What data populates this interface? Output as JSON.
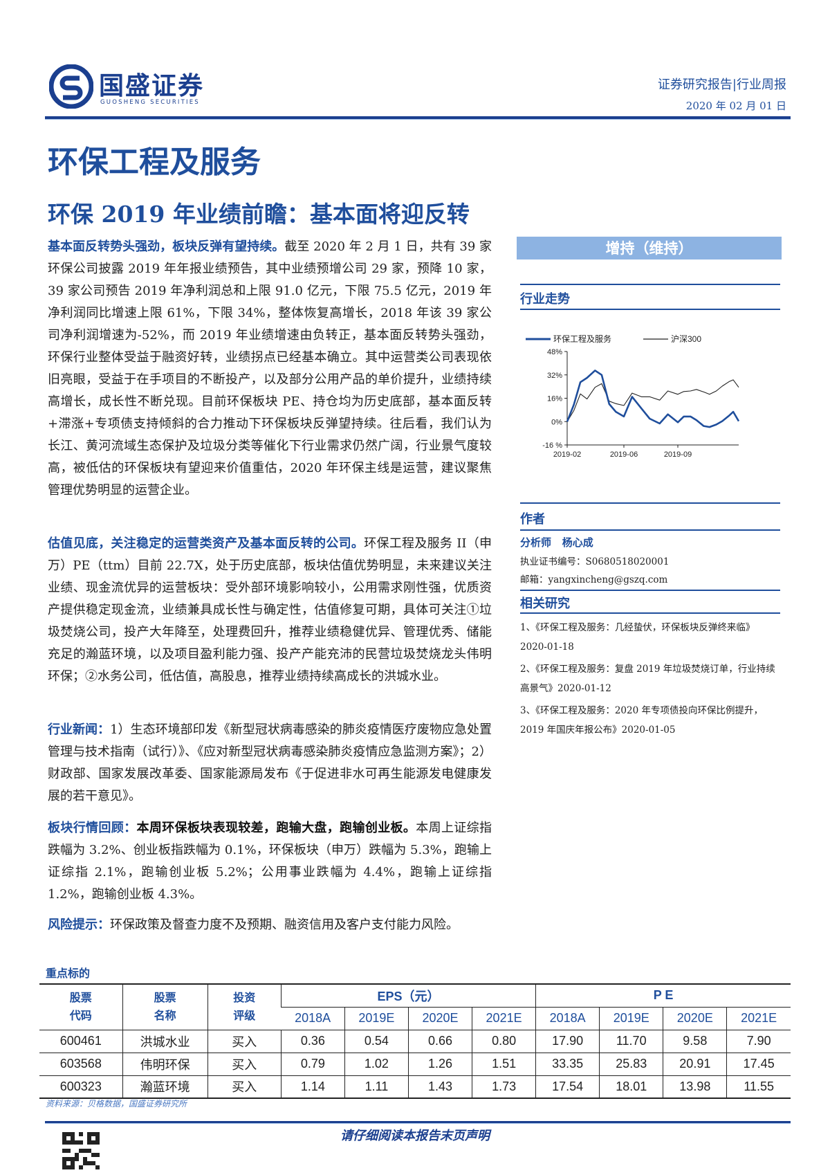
{
  "header": {
    "logo_cn": "国盛证券",
    "logo_en": "GUOSHENG SECURITIES",
    "report_type": "证券研究报告|行业周报",
    "date": "2020 年 02 月 01 日"
  },
  "industry_title": "环保工程及服务",
  "report_title": "环保 2019 年业绩前瞻：基本面将迎反转",
  "rating": "增持（维持）",
  "paragraphs": [
    {
      "lead": "基本面反转势头强劲，板块反弹有望持续。",
      "text": "截至 2020 年 2 月 1 日，共有 39 家环保公司披露 2019 年年报业绩预告，其中业绩预增公司 29 家，预降 10 家，39 家公司预告 2019 年净利润总和上限 91.0 亿元，下限 75.5 亿元，2019 年净利润同比增速上限 61%，下限 34%，整体恢复高增长，2018 年该 39 家公司净利润增速为-52%，而 2019 年业绩增速由负转正，基本面反转势头强劲，环保行业整体受益于融资好转，业绩拐点已经基本确立。其中运营类公司表现依旧亮眼，受益于在手项目的不断投产，以及部分公用产品的单价提升，业绩持续高增长，成长性不断兑现。目前环保板块 PE、持仓均为历史底部，基本面反转+滞涨+专项债支持倾斜的合力推动下环保板块反弹望持续。往后看，我们认为长江、黄河流域生态保护及垃圾分类等催化下行业需求仍然广阔，行业景气度较高，被低估的环保板块有望迎来价值重估，2020 年环保主线是运营，建议聚焦管理优势明显的运营企业。"
    },
    {
      "lead": "估值见底，关注稳定的运营类资产及基本面反转的公司。",
      "text": "环保工程及服务 II（申万）PE（ttm）目前 22.7X，处于历史底部，板块估值优势明显，未来建议关注业绩、现金流优异的运营板块：受外部环境影响较小，公用需求刚性强，优质资产提供稳定现金流，业绩兼具成长性与确定性，估值修复可期，具体可关注①垃圾焚烧公司，投产大年降至，处理费回升，推荐业绩稳健优异、管理优秀、储能充足的瀚蓝环境，以及项目盈利能力强、投产产能充沛的民营垃圾焚烧龙头伟明环保；②水务公司，低估值，高股息，推荐业绩持续高成长的洪城水业。"
    },
    {
      "lead": "行业新闻：",
      "text": "1）生态环境部印发《新型冠状病毒感染的肺炎疫情医疗废物应急处置管理与技术指南（试行）》、《应对新型冠状病毒感染肺炎疫情应急监测方案》；2）财政部、国家发展改革委、国家能源局发布《于促进非水可再生能源发电健康发展的若干意见》。"
    },
    {
      "lead": "板块行情回顾：",
      "bold": "本周环保板块表现较差，跑输大盘，跑输创业板。",
      "text": "本周上证综指跌幅为 3.2%、创业板指跌幅为 0.1%，环保板块（申万）跌幅为 5.3%，跑输上证综指 2.1%，跑输创业板 5.2%；公用事业跌幅为 4.4%，跑输上证综指 1.2%，跑输创业板 4.3%。"
    },
    {
      "lead": "风险提示：",
      "text": "环保政策及督查力度不及预期、融资信用及客户支付能力风险。"
    }
  ],
  "sidebar": {
    "trend_heading": "行业走势",
    "author_heading": "作者",
    "analyst_label": "分析师",
    "analyst_name": "杨心成",
    "license_label": "执业证书编号：",
    "license": "S0680518020001",
    "email_label": "邮箱：",
    "email": "yangxincheng@gszq.com",
    "related_heading": "相关研究",
    "related": [
      "1、《环保工程及服务：几经蛰伏，环保板块反弹终来临》2020-01-18",
      "2、《环保工程及服务：复盘 2019 年垃圾焚烧订单，行业持续高景气》2020-01-12",
      "3、《环保工程及服务：2020 年专项债投向环保比例提升，2019 年国庆年报公布》2020-01-05"
    ]
  },
  "chart_data": {
    "type": "line",
    "yticks": [
      "48%",
      "32%",
      "16%",
      "0%",
      "-16 %"
    ],
    "ylim": [
      -16,
      48
    ],
    "xticks": [
      "2019-02",
      "2019-06",
      "2019-09"
    ],
    "grid": false,
    "legend_position": "top",
    "x": [
      "2019-02-01",
      "2019-02-15",
      "2019-03-01",
      "2019-03-15",
      "2019-04-01",
      "2019-04-15",
      "2019-05-01",
      "2019-05-15",
      "2019-06-01",
      "2019-06-15",
      "2019-07-01",
      "2019-07-15",
      "2019-08-01",
      "2019-08-15",
      "2019-09-01",
      "2019-09-15",
      "2019-10-01",
      "2019-10-15",
      "2019-11-01",
      "2019-11-15",
      "2019-12-01",
      "2019-12-15",
      "2020-01-01",
      "2020-01-10",
      "2020-01-23"
    ],
    "series": [
      {
        "name": "环保工程及服务",
        "color": "#1f4e9c",
        "values": [
          0,
          11.5,
          27,
          30,
          35,
          32,
          12,
          6.7,
          3.5,
          17,
          9,
          2,
          -1.3,
          5,
          -0.5,
          3.5,
          3.5,
          1,
          -3,
          -3.7,
          -2,
          0.3,
          4.3,
          6.7,
          0.3
        ]
      },
      {
        "name": "沪深300",
        "color": "#222222",
        "values": [
          0,
          7.5,
          19,
          15.5,
          23.5,
          26,
          14,
          12.3,
          11,
          19.5,
          17,
          17,
          14.7,
          21,
          18.7,
          20.6,
          21,
          22,
          20.3,
          18.7,
          21,
          24.3,
          27.5,
          28.6,
          23.5
        ]
      }
    ]
  },
  "key_stocks": {
    "heading": "重点标的",
    "headers": {
      "code": "股票代码",
      "name": "股票名称",
      "rating": "投资评级",
      "eps": "EPS（元）",
      "pe": "P E"
    },
    "years": [
      "2018A",
      "2019E",
      "2020E",
      "2021E"
    ],
    "rows": [
      {
        "code": "600461",
        "name": "洪城水业",
        "rating": "买入",
        "eps": [
          "0.36",
          "0.54",
          "0.66",
          "0.80"
        ],
        "pe": [
          "17.90",
          "11.70",
          "9.58",
          "7.90"
        ]
      },
      {
        "code": "603568",
        "name": "伟明环保",
        "rating": "买入",
        "eps": [
          "0.79",
          "1.02",
          "1.26",
          "1.51"
        ],
        "pe": [
          "33.35",
          "25.83",
          "20.91",
          "17.45"
        ]
      },
      {
        "code": "600323",
        "name": "瀚蓝环境",
        "rating": "买入",
        "eps": [
          "1.14",
          "1.11",
          "1.43",
          "1.73"
        ],
        "pe": [
          "17.54",
          "18.01",
          "13.98",
          "11.55"
        ]
      }
    ],
    "source": "资料来源：贝格数据，国盛证券研究所"
  },
  "footer": {
    "disclaimer": "请仔细阅读本报告末页声明"
  },
  "colors": {
    "brand_blue": "#1f4e9c",
    "rating_bg": "#8db3e2"
  }
}
